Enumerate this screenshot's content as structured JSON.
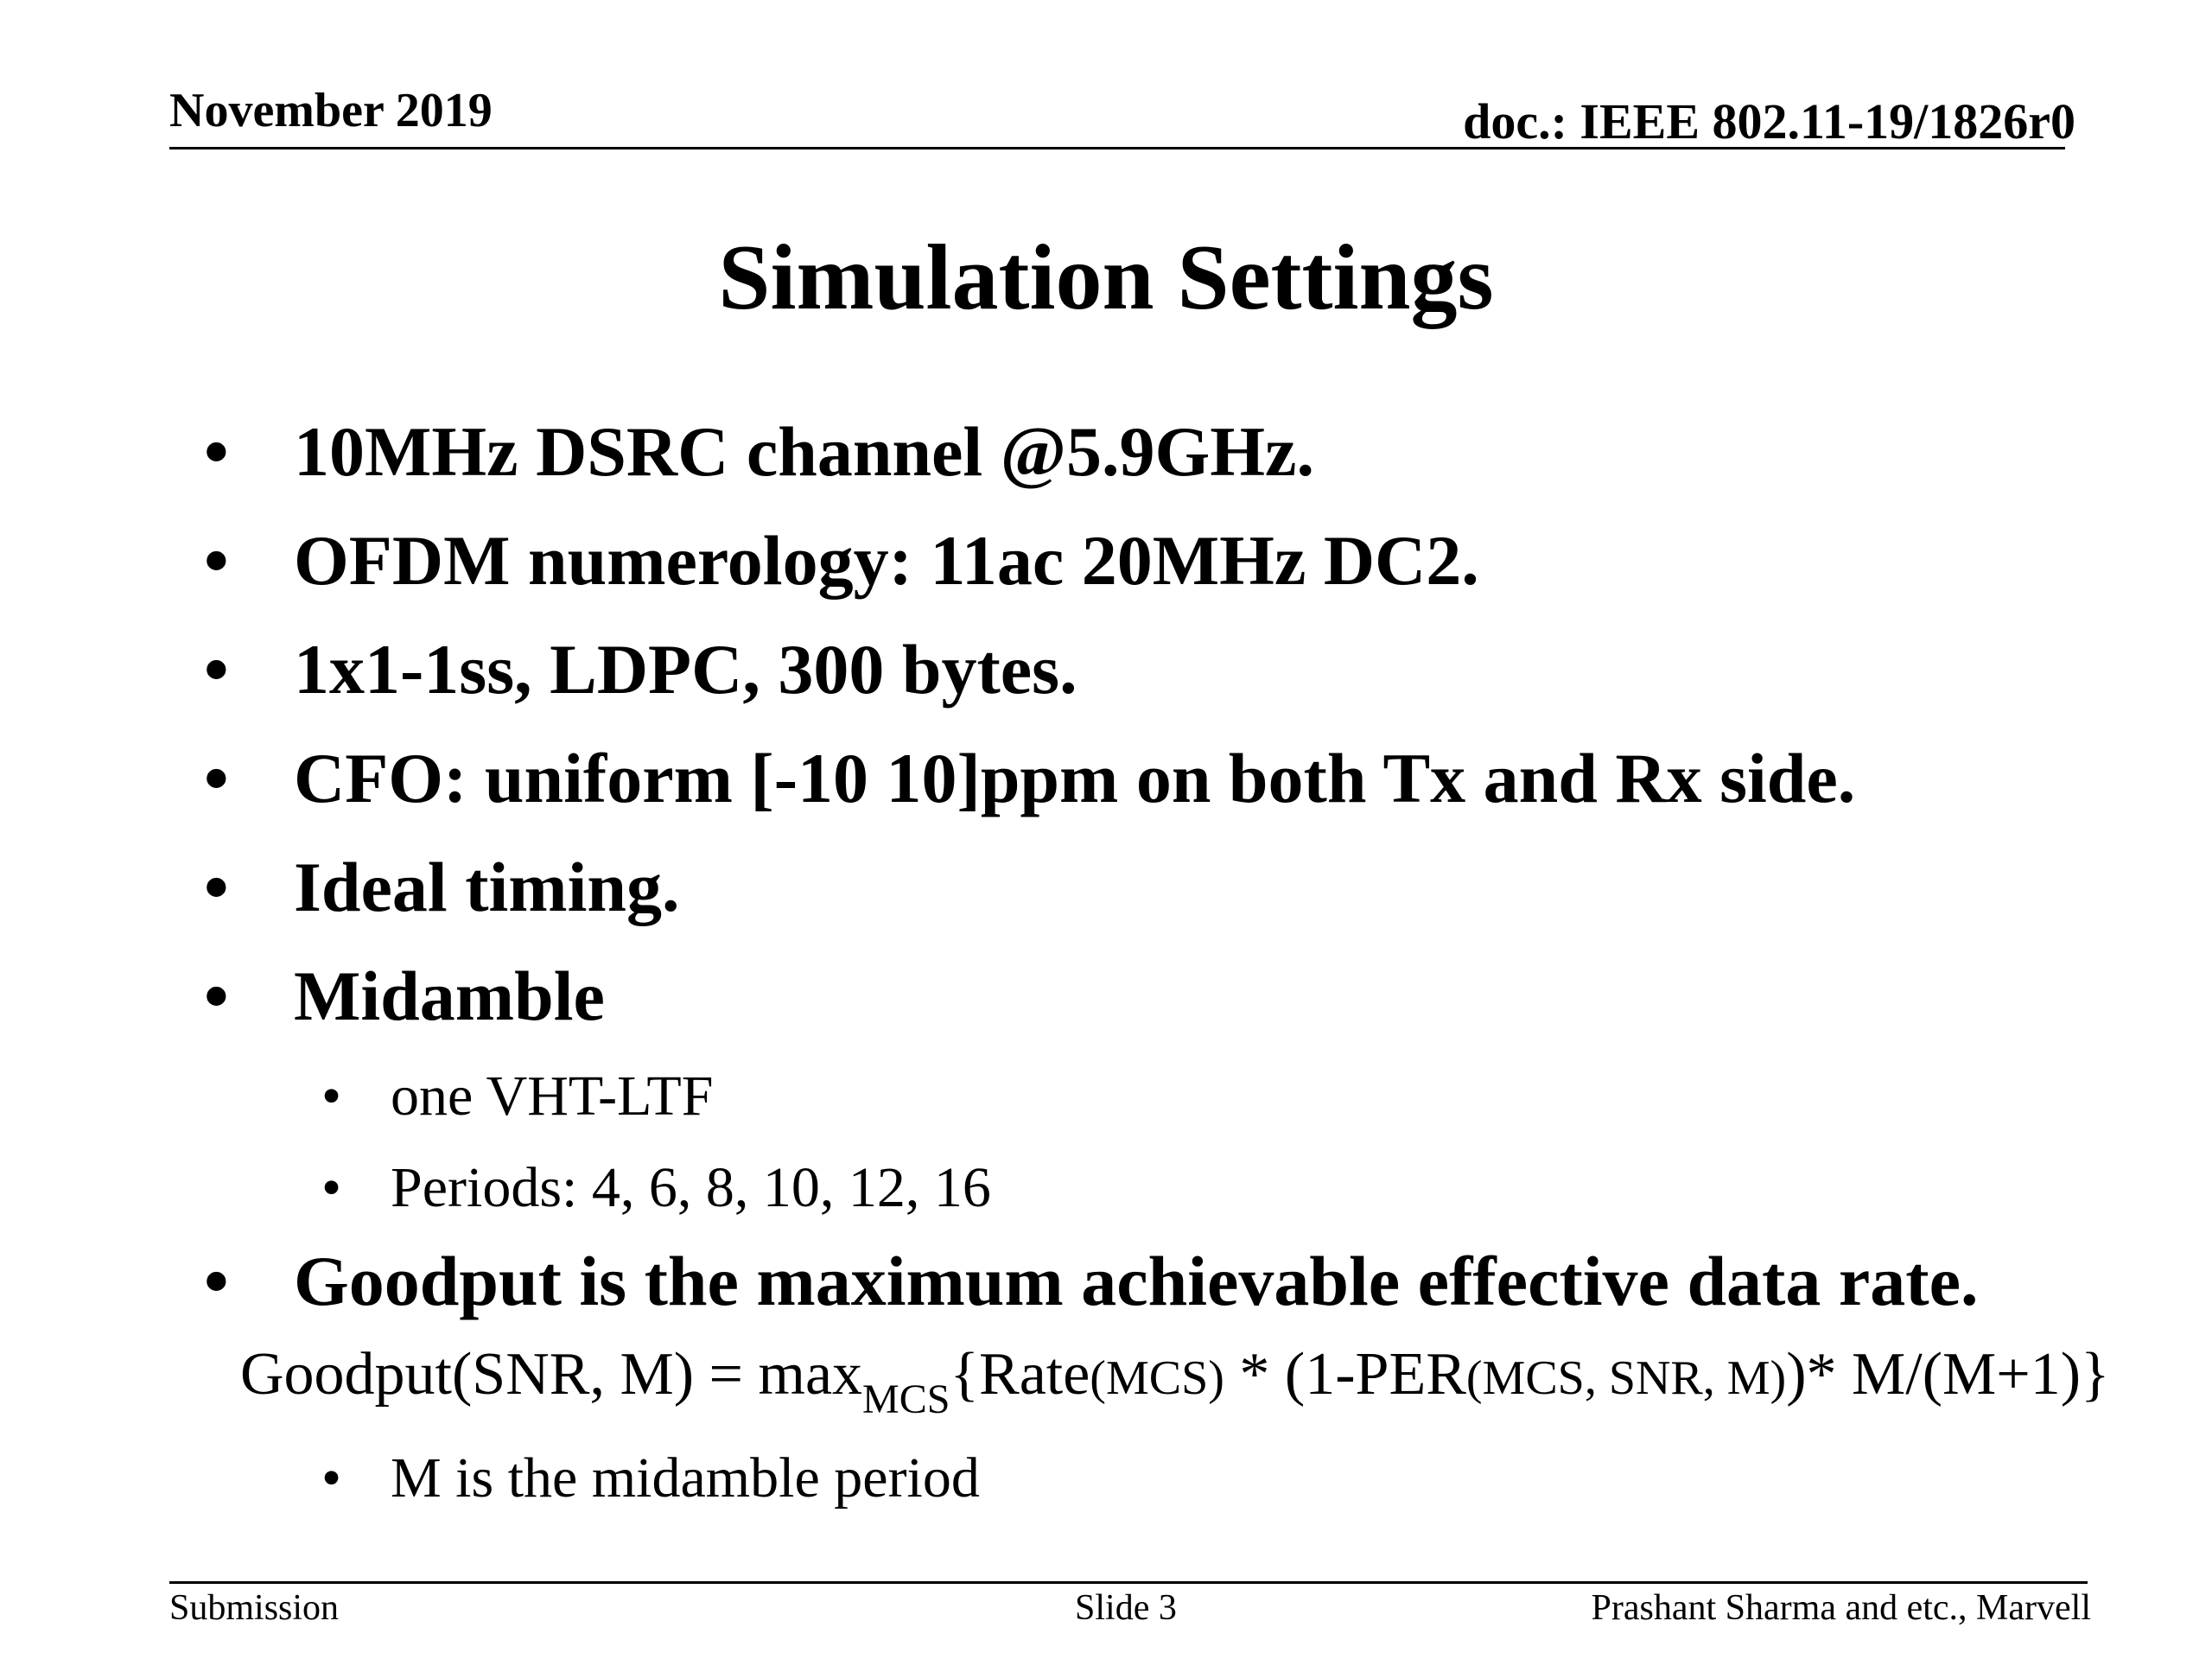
{
  "header": {
    "date": "November 2019",
    "doc": "doc.: IEEE 802.11-19/1826r0"
  },
  "title": "Simulation Settings",
  "bullets": [
    "10MHz DSRC channel @5.9GHz.",
    "OFDM numerology: 11ac 20MHz DC2.",
    "1x1-1ss, LDPC, 300 bytes.",
    "CFO: uniform [-10 10]ppm on both Tx and Rx side.",
    "Ideal timing.",
    "Midamble"
  ],
  "midamble_sub": [
    "one VHT-LTF",
    "Periods: 4, 6, 8, 10, 12, 16"
  ],
  "goodput_bullet": "Goodput is the maximum achievable effective data rate.",
  "formula": {
    "lhs": "Goodput(SNR, M) = max",
    "sub": "MCS",
    "open": "{Rate",
    "rate_arg": "(MCS)",
    "mid": " * (1-PER",
    "per_arg": "(MCS, SNR, M)",
    "tail": ")* M/(M+1)}"
  },
  "goodput_sub": [
    "M is the midamble period"
  ],
  "bullet_char": "•",
  "footer": {
    "left": "Submission",
    "center": "Slide 3",
    "right": "Prashant Sharma and etc., Marvell"
  }
}
